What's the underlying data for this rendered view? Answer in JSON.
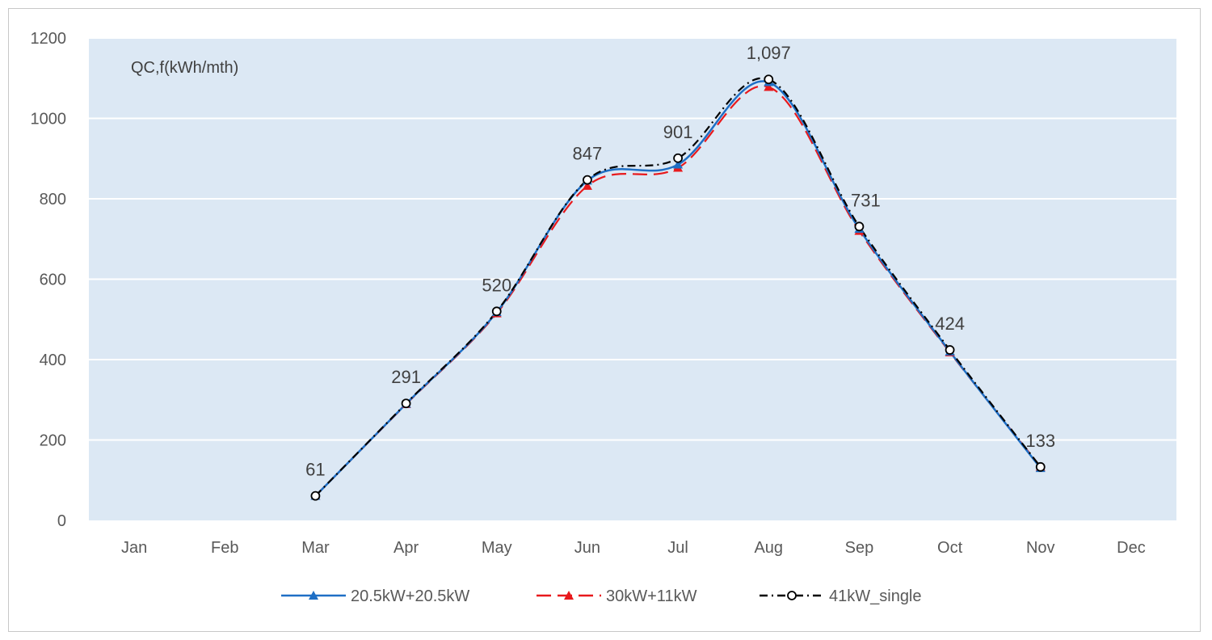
{
  "chart_data": {
    "type": "line",
    "ylabel": "QC,f(kWh/mth)",
    "ylim": [
      0,
      1200
    ],
    "yticks": [
      "0",
      "200",
      "400",
      "600",
      "800",
      "1000",
      "1200"
    ],
    "categories": [
      "Jan",
      "Feb",
      "Mar",
      "Apr",
      "May",
      "Jun",
      "Jul",
      "Aug",
      "Sep",
      "Oct",
      "Nov",
      "Dec"
    ],
    "series": [
      {
        "name": "20.5kW+20.5kW",
        "color": "#1f6fc5",
        "style": "solid",
        "marker": "triangle",
        "values": [
          null,
          null,
          61,
          290,
          518,
          845,
          885,
          1090,
          725,
          420,
          130,
          null
        ]
      },
      {
        "name": "30kW+11kW",
        "color": "#e8191c",
        "style": "dashed",
        "marker": "triangle",
        "values": [
          null,
          null,
          61,
          289,
          515,
          832,
          877,
          1078,
          720,
          418,
          133,
          null
        ]
      },
      {
        "name": "41kW_single",
        "color": "#000000",
        "style": "dashdot",
        "marker": "circle",
        "values": [
          null,
          null,
          61,
          291,
          520,
          847,
          901,
          1097,
          731,
          424,
          133,
          null
        ]
      }
    ],
    "data_labels": [
      "",
      "",
      "61",
      "291",
      "520",
      "847",
      "901",
      "1,097",
      "731",
      "424",
      "133",
      ""
    ],
    "plot_background": "#dce8f4",
    "grid": true,
    "legend_position": "bottom"
  }
}
